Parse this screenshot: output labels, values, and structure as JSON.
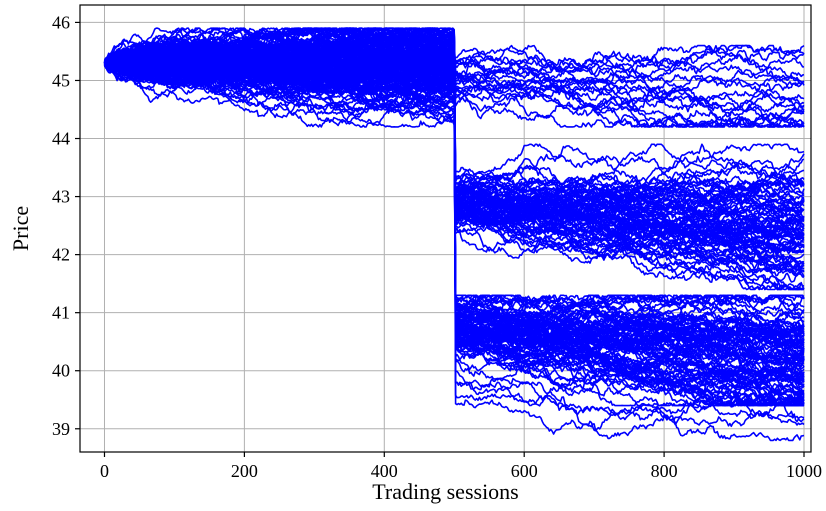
{
  "chart_data": {
    "type": "line",
    "title": "",
    "xlabel": "Trading sessions",
    "ylabel": "Price",
    "xlim": [
      -35,
      1010
    ],
    "ylim": [
      38.6,
      46.3
    ],
    "xticks": [
      0,
      200,
      400,
      600,
      800,
      1000
    ],
    "xtick_labels": [
      "0",
      "200",
      "400",
      "600",
      "800",
      "1000"
    ],
    "yticks": [
      39,
      40,
      41,
      42,
      43,
      44,
      45,
      46
    ],
    "ytick_labels": [
      "39",
      "40",
      "41",
      "42",
      "43",
      "44",
      "45",
      "46"
    ],
    "grid": true,
    "line_color": "#0000ff",
    "simulation": {
      "num_paths": 200,
      "sessions": 1000,
      "start_price": 45.3,
      "regime_change_session": 500,
      "pre_change_range": [
        44.2,
        45.9
      ],
      "post_change_clusters": [
        {
          "level": 45.1,
          "range": [
            44.2,
            45.6
          ]
        },
        {
          "level": 42.9,
          "range": [
            41.4,
            43.9
          ]
        },
        {
          "level": 40.7,
          "range": [
            39.4,
            41.3
          ]
        },
        {
          "level": 39.8,
          "range": [
            38.8,
            39.8
          ]
        }
      ]
    }
  }
}
